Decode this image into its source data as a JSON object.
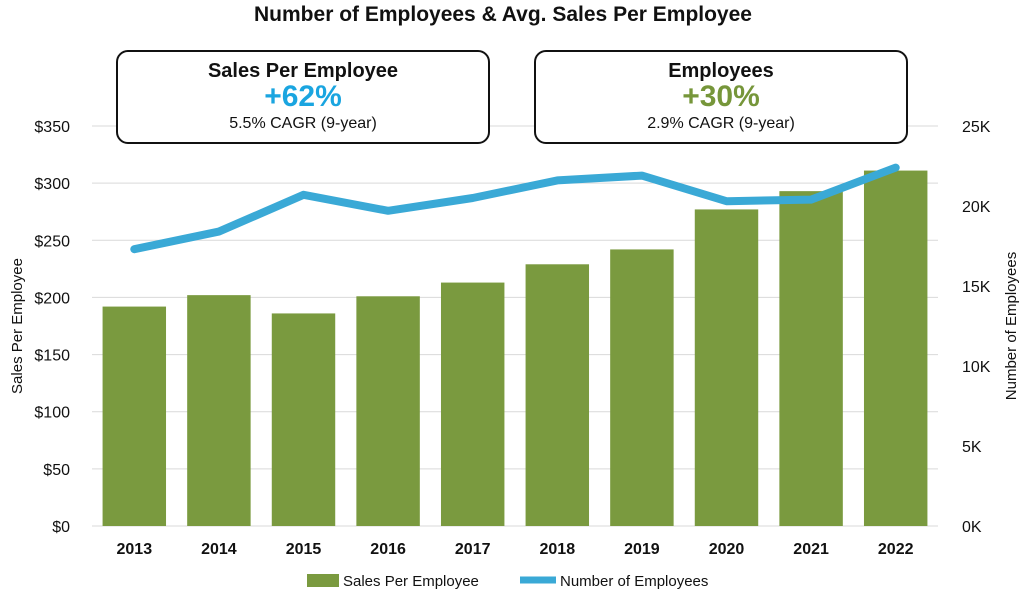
{
  "chart_data": {
    "type": "bar+line",
    "title": "Number of Employees & Avg. Sales Per Employee",
    "categories": [
      "2013",
      "2014",
      "2015",
      "2016",
      "2017",
      "2018",
      "2019",
      "2020",
      "2021",
      "2022"
    ],
    "series": [
      {
        "name": "Sales Per Employee",
        "type": "bar",
        "axis": "left",
        "values": [
          192,
          202,
          186,
          201,
          213,
          229,
          242,
          277,
          293,
          311
        ]
      },
      {
        "name": "Number of Employees",
        "type": "line",
        "axis": "right",
        "values": [
          17300,
          18400,
          20700,
          19700,
          20500,
          21600,
          21900,
          20300,
          20400,
          22400
        ]
      }
    ],
    "ylabel_left": "Sales Per Employee",
    "ylabel_right": "Number of Employees",
    "ylim_left": [
      0,
      350
    ],
    "ylim_right": [
      0,
      25000
    ],
    "yticks_left": [
      "$0",
      "$50",
      "$100",
      "$150",
      "$200",
      "$250",
      "$300",
      "$350"
    ],
    "yticks_right": [
      "0K",
      "5K",
      "10K",
      "15K",
      "20K",
      "25K"
    ],
    "grid": true,
    "legend_position": "bottom",
    "colors": {
      "bar": "#7a9a3f",
      "line": "#3aa9d6",
      "grid": "#d9d9d9",
      "text": "#111111"
    }
  },
  "callouts": {
    "sales": {
      "title": "Sales Per Employee",
      "value": "+62%",
      "sub": "5.5% CAGR (9-year)",
      "color": "#1aa5e0"
    },
    "employees": {
      "title": "Employees",
      "value": "+30%",
      "sub": "2.9% CAGR (9-year)",
      "color": "#76963a"
    }
  }
}
